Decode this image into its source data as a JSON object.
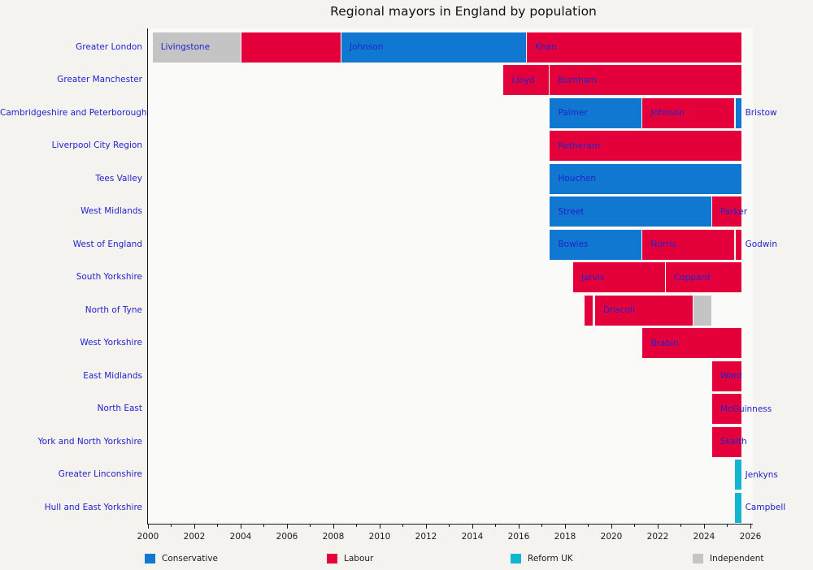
{
  "title": "Regional mayors in England by population",
  "party_colors": {
    "conservative": "#1078d0",
    "labour": "#e4003b",
    "reform": "#12b6cf",
    "independent": "#c4c4c4"
  },
  "legend": {
    "items": [
      {
        "label": "Conservative",
        "party": "conservative"
      },
      {
        "label": "Labour",
        "party": "labour"
      },
      {
        "label": "Reform UK",
        "party": "reform"
      },
      {
        "label": "Independent",
        "party": "independent"
      }
    ]
  },
  "chart_data": {
    "type": "gantt",
    "title": "Regional mayors in England by population",
    "xlabel": "",
    "ylabel": "",
    "x_axis": {
      "range": [
        2000,
        2026.2
      ],
      "major_ticks": [
        2000,
        2002,
        2004,
        2006,
        2008,
        2010,
        2012,
        2014,
        2016,
        2018,
        2020,
        2022,
        2024,
        2026
      ],
      "minor_ticks": [
        2001,
        2003,
        2005,
        2007,
        2009,
        2011,
        2013,
        2015,
        2017,
        2019,
        2021,
        2023,
        2025
      ],
      "unit": "year"
    },
    "legend_position": "bottom",
    "rows": [
      {
        "region": "Greater London",
        "segments": [
          {
            "name": "Livingstone",
            "party": "independent",
            "start": 2000.2,
            "end": 2004.0
          },
          {
            "name": "",
            "party": "labour",
            "start": 2004.05,
            "end": 2008.3
          },
          {
            "name": "Johnson",
            "party": "conservative",
            "start": 2008.35,
            "end": 2016.3
          },
          {
            "name": "Khan",
            "party": "labour",
            "start": 2016.35,
            "end": 2025.6
          }
        ]
      },
      {
        "region": "Greater Manchester",
        "segments": [
          {
            "name": "Lloyd",
            "party": "labour",
            "start": 2015.35,
            "end": 2017.3
          },
          {
            "name": "Burnham",
            "party": "labour",
            "start": 2017.35,
            "end": 2025.6
          }
        ]
      },
      {
        "region": "Cambridgeshire and Peterborough",
        "segments": [
          {
            "name": "Palmer",
            "party": "conservative",
            "start": 2017.35,
            "end": 2021.3
          },
          {
            "name": "Johnson",
            "party": "labour",
            "start": 2021.35,
            "end": 2025.3
          },
          {
            "name": "Bristow",
            "party": "conservative",
            "start": 2025.38,
            "end": 2025.6,
            "label_outside": true
          }
        ]
      },
      {
        "region": "Liverpool City Region",
        "segments": [
          {
            "name": "Rotheram",
            "party": "labour",
            "start": 2017.35,
            "end": 2025.6
          }
        ]
      },
      {
        "region": "Tees Valley",
        "segments": [
          {
            "name": "Houchen",
            "party": "conservative",
            "start": 2017.35,
            "end": 2025.6
          }
        ]
      },
      {
        "region": "West Midlands",
        "segments": [
          {
            "name": "Street",
            "party": "conservative",
            "start": 2017.35,
            "end": 2024.3
          },
          {
            "name": "Parker",
            "party": "labour",
            "start": 2024.35,
            "end": 2025.6
          }
        ]
      },
      {
        "region": "West of England",
        "segments": [
          {
            "name": "Bowles",
            "party": "conservative",
            "start": 2017.35,
            "end": 2021.3
          },
          {
            "name": "Norris",
            "party": "labour",
            "start": 2021.35,
            "end": 2025.3
          },
          {
            "name": "Godwin",
            "party": "labour",
            "start": 2025.38,
            "end": 2025.6,
            "label_outside": true
          }
        ]
      },
      {
        "region": "South Yorkshire",
        "segments": [
          {
            "name": "Jarvis",
            "party": "labour",
            "start": 2018.35,
            "end": 2022.3
          },
          {
            "name": "Coppard",
            "party": "labour",
            "start": 2022.35,
            "end": 2025.6
          }
        ]
      },
      {
        "region": "North of Tyne",
        "segments": [
          {
            "name": "",
            "party": "labour",
            "start": 2018.85,
            "end": 2019.2
          },
          {
            "name": "Driscoll",
            "party": "labour",
            "start": 2019.3,
            "end": 2023.5
          },
          {
            "name": "",
            "party": "independent",
            "start": 2023.55,
            "end": 2024.3
          }
        ]
      },
      {
        "region": "West Yorkshire",
        "segments": [
          {
            "name": "Brabin",
            "party": "labour",
            "start": 2021.35,
            "end": 2025.6
          }
        ]
      },
      {
        "region": "East Midlands",
        "segments": [
          {
            "name": "Ward",
            "party": "labour",
            "start": 2024.35,
            "end": 2025.6
          }
        ]
      },
      {
        "region": "North East",
        "segments": [
          {
            "name": "McGuinness",
            "party": "labour",
            "start": 2024.35,
            "end": 2025.6
          }
        ]
      },
      {
        "region": "York and North Yorkshire",
        "segments": [
          {
            "name": "Skaith",
            "party": "labour",
            "start": 2024.35,
            "end": 2025.6
          }
        ]
      },
      {
        "region": "Greater Linconshire",
        "segments": [
          {
            "name": "Jenkyns",
            "party": "reform",
            "start": 2025.35,
            "end": 2025.6,
            "label_outside": true
          }
        ]
      },
      {
        "region": "Hull and East Yorkshire",
        "segments": [
          {
            "name": "Campbell",
            "party": "reform",
            "start": 2025.35,
            "end": 2025.6,
            "label_outside": true
          }
        ]
      }
    ]
  }
}
